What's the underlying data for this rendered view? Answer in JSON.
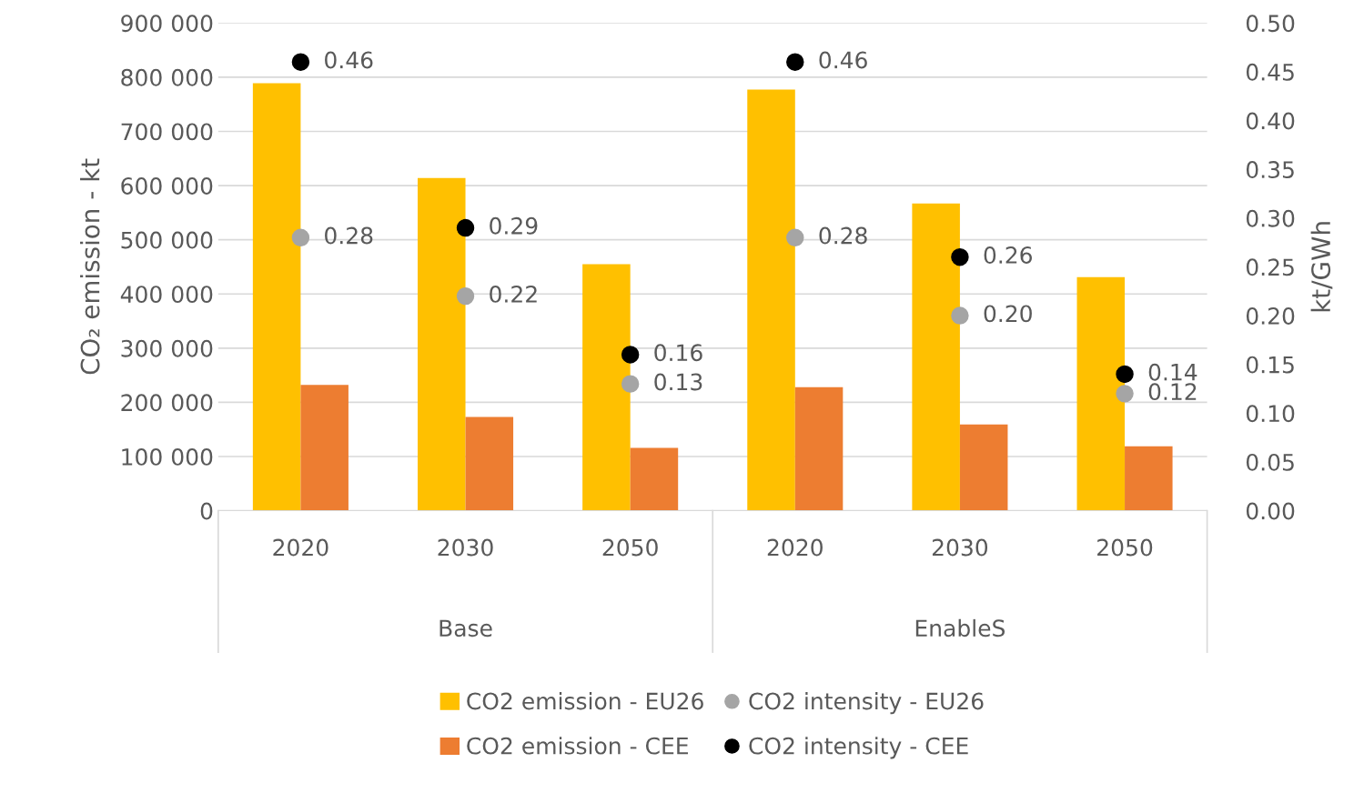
{
  "chart_data": {
    "type": "bar",
    "ylabel": "CO₂ emission - kt",
    "y2label": "kt/GWh",
    "categories": [
      "2020",
      "2030",
      "2050",
      "2020",
      "2030",
      "2050"
    ],
    "annotations": [
      "Base",
      "EnableS"
    ],
    "series": [
      {
        "name": "CO2 emission - EU26",
        "color": "#ffc000",
        "values": [
          789000,
          614000,
          455000,
          777000,
          567000,
          431000
        ]
      },
      {
        "name": "CO2 emission - CEE",
        "color": "#ed7d31",
        "values": [
          232000,
          173000,
          116000,
          228000,
          159000,
          119000
        ]
      },
      {
        "name": "CO2 intensity - EU26",
        "type": "scatter",
        "axis": "y2",
        "color": "#a5a5a5",
        "values": [
          0.28,
          0.22,
          0.13,
          0.28,
          0.2,
          0.12
        ],
        "value_labels": [
          "0.28",
          "0.22",
          "0.13",
          "0.28",
          "0.20",
          "0.12"
        ]
      },
      {
        "name": "CO2 intensity - CEE",
        "type": "scatter",
        "axis": "y2",
        "color": "#000000",
        "values": [
          0.46,
          0.29,
          0.16,
          0.46,
          0.26,
          0.14
        ],
        "value_labels": [
          "0.46",
          "0.29",
          "0.16",
          "0.46",
          "0.26",
          "0.14"
        ]
      }
    ],
    "ylim": [
      0,
      900000
    ],
    "yticks": [
      0,
      {
        "value": 100000,
        "label": "100 000"
      },
      {
        "value": 200000,
        "label": "200 000"
      },
      {
        "value": 300000,
        "label": "300 000"
      },
      {
        "value": 400000,
        "label": "400 000"
      },
      {
        "value": 500000,
        "label": "500 000"
      },
      {
        "value": 600000,
        "label": "600 000"
      },
      {
        "value": 700000,
        "label": "700 000"
      },
      {
        "value": 800000,
        "label": "800 000"
      },
      {
        "value": 900000,
        "label": "900 000"
      }
    ],
    "y2lim": [
      0,
      0.5
    ],
    "y2ticks": [
      {
        "value": 0,
        "label": "0.00"
      },
      {
        "value": 0.05,
        "label": "0.05"
      },
      {
        "value": 0.1,
        "label": "0.10"
      },
      {
        "value": 0.15,
        "label": "0.15"
      },
      {
        "value": 0.2,
        "label": "0.20"
      },
      {
        "value": 0.25,
        "label": "0.25"
      },
      {
        "value": 0.3,
        "label": "0.30"
      },
      {
        "value": 0.35,
        "label": "0.35"
      },
      {
        "value": 0.4,
        "label": "0.40"
      },
      {
        "value": 0.45,
        "label": "0.45"
      },
      {
        "value": 0.5,
        "label": "0.50"
      }
    ],
    "grid": "y",
    "marker": "circle",
    "legend": "bottom"
  }
}
